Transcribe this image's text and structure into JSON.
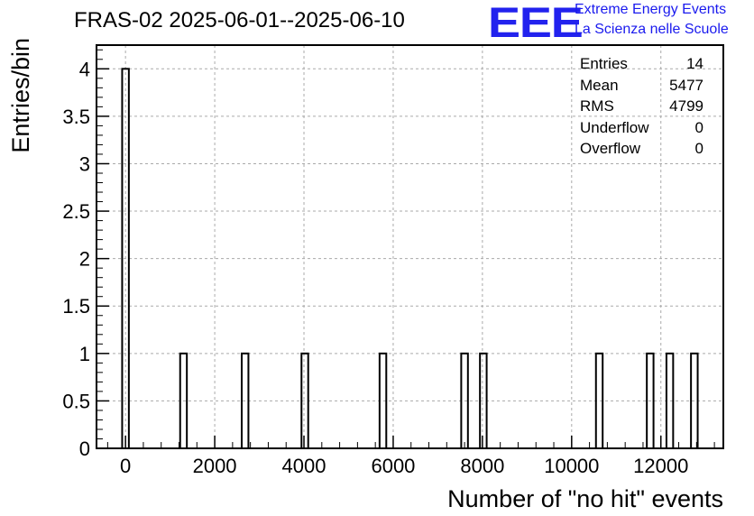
{
  "chart_data": {
    "type": "histogram",
    "title": "FRAS-02 2025-06-01--2025-06-10",
    "xlabel": "Number of \"no hit\" events",
    "ylabel": "Entries/bin",
    "xlim": [
      -650,
      13400
    ],
    "ylim": [
      0,
      4.25
    ],
    "x_ticks": [
      0,
      2000,
      4000,
      6000,
      8000,
      10000,
      12000
    ],
    "y_ticks": [
      0,
      0.5,
      1,
      1.5,
      2,
      2.5,
      3,
      3.5,
      4
    ],
    "y_tick_labels": [
      "0",
      "0.5",
      "1",
      "1.5",
      "2",
      "2.5",
      "3",
      "3.5",
      "4"
    ],
    "bin_width": 150,
    "grid": true,
    "bins": [
      {
        "x": 0,
        "count": 4
      },
      {
        "x": 1300,
        "count": 1
      },
      {
        "x": 2680,
        "count": 1
      },
      {
        "x": 4020,
        "count": 1
      },
      {
        "x": 5770,
        "count": 1
      },
      {
        "x": 7600,
        "count": 1
      },
      {
        "x": 8020,
        "count": 1
      },
      {
        "x": 10620,
        "count": 1
      },
      {
        "x": 11760,
        "count": 1
      },
      {
        "x": 12200,
        "count": 1
      },
      {
        "x": 12750,
        "count": 1
      }
    ],
    "stats": [
      {
        "label": "Entries",
        "value": "14"
      },
      {
        "label": "Mean",
        "value": "5477"
      },
      {
        "label": "RMS",
        "value": "4799"
      },
      {
        "label": "Underflow",
        "value": "0"
      },
      {
        "label": "Overflow",
        "value": "0"
      }
    ]
  },
  "logo": {
    "mark": "EEE",
    "line1": "Extreme Energy Events",
    "line2": "La Scienza nelle Scuole"
  }
}
